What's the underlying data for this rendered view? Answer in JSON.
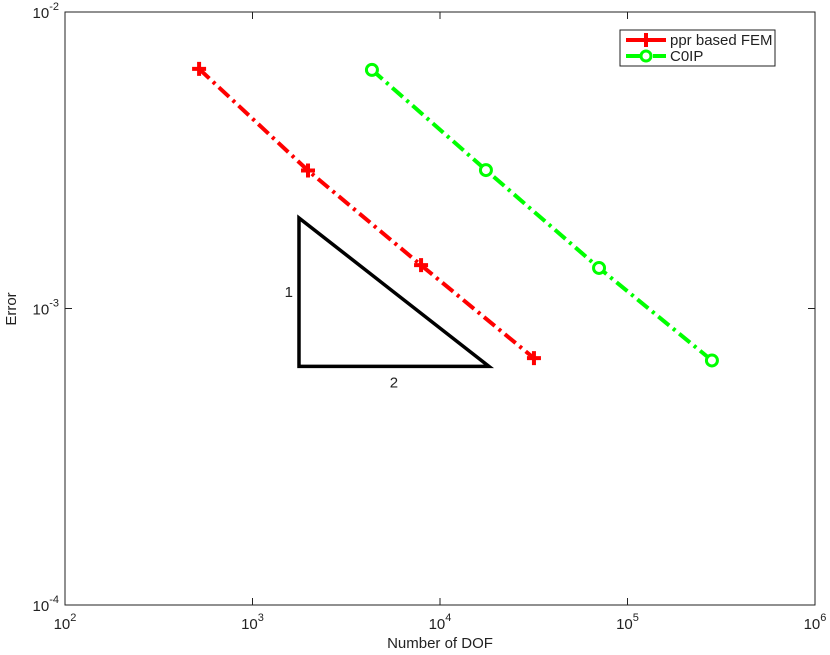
{
  "chart_data": {
    "type": "line",
    "xlabel": "Number of DOF",
    "ylabel": "Error",
    "xscale": "log",
    "yscale": "log",
    "xlim": [
      100,
      1000000
    ],
    "xticks": [
      {
        "value": 100,
        "label": "10",
        "exponent": "2"
      },
      {
        "value": 1000,
        "label": "10",
        "exponent": "3"
      },
      {
        "value": 10000,
        "label": "10",
        "exponent": "4"
      },
      {
        "value": 100000,
        "label": "10",
        "exponent": "5"
      },
      {
        "value": 1000000,
        "label": "10",
        "exponent": "6"
      }
    ],
    "ylim": [
      0.0001,
      0.01
    ],
    "yticks": [
      {
        "value": 0.0001,
        "label": "10",
        "exponent": "-4"
      },
      {
        "value": 0.001,
        "label": "10",
        "exponent": "-3"
      },
      {
        "value": 0.01,
        "label": "10",
        "exponent": "-2"
      }
    ],
    "legend": "upper right",
    "series": [
      {
        "name": "ppr based FEM",
        "color": "#ff0000",
        "marker": "plus",
        "x": [
          519,
          1977,
          7925,
          31700
        ],
        "values": [
          0.00643,
          0.00292,
          0.0014,
          0.00068
        ]
      },
      {
        "name": "C0IP",
        "color": "#00ff00",
        "marker": "circle",
        "x": [
          4335,
          17580,
          70500,
          282000
        ],
        "values": [
          0.00638,
          0.00293,
          0.00137,
          0.000668
        ]
      }
    ],
    "triangle": {
      "x": [
        1770,
        18240
      ],
      "y": [
        0.000638,
        0.00202
      ],
      "labels": [
        "1",
        "2"
      ]
    }
  }
}
